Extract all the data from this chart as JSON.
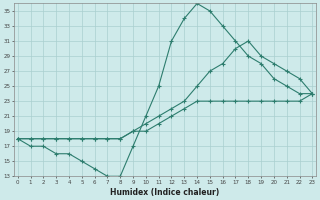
{
  "xlabel": "Humidex (Indice chaleur)",
  "bg_color": "#ceeaea",
  "line_color": "#2d7d6e",
  "grid_color": "#aacfcf",
  "xmin": 0,
  "xmax": 23,
  "ymin": 13,
  "ymax": 36,
  "yticks": [
    13,
    15,
    17,
    19,
    21,
    23,
    25,
    27,
    29,
    31,
    33,
    35
  ],
  "xticks": [
    0,
    1,
    2,
    3,
    4,
    5,
    6,
    7,
    8,
    9,
    10,
    11,
    12,
    13,
    14,
    15,
    16,
    17,
    18,
    19,
    20,
    21,
    22,
    23
  ],
  "series": [
    {
      "x": [
        0,
        1,
        2,
        3,
        4,
        5,
        6,
        7,
        8,
        9,
        10,
        11,
        12,
        13,
        14,
        15,
        16,
        17,
        18,
        19,
        20,
        21,
        22,
        23
      ],
      "y": [
        18,
        17,
        17,
        16,
        16,
        15,
        14,
        13,
        13,
        17,
        21,
        25,
        31,
        34,
        36,
        35,
        33,
        31,
        29,
        28,
        26,
        25,
        24,
        24
      ]
    },
    {
      "x": [
        0,
        1,
        2,
        3,
        4,
        5,
        6,
        7,
        8,
        9,
        10,
        11,
        12,
        13,
        14,
        15,
        16,
        17,
        18,
        19,
        20,
        21,
        22,
        23
      ],
      "y": [
        18,
        18,
        18,
        18,
        18,
        18,
        18,
        18,
        18,
        19,
        19,
        20,
        21,
        22,
        23,
        23,
        23,
        23,
        23,
        23,
        23,
        23,
        23,
        24
      ]
    },
    {
      "x": [
        0,
        1,
        2,
        3,
        4,
        5,
        6,
        7,
        8,
        9,
        10,
        11,
        12,
        13,
        14,
        15,
        16,
        17,
        18,
        19,
        20,
        21,
        22,
        23
      ],
      "y": [
        18,
        18,
        18,
        18,
        18,
        18,
        18,
        18,
        18,
        19,
        20,
        21,
        22,
        23,
        25,
        27,
        28,
        30,
        31,
        29,
        28,
        27,
        26,
        24
      ]
    }
  ]
}
